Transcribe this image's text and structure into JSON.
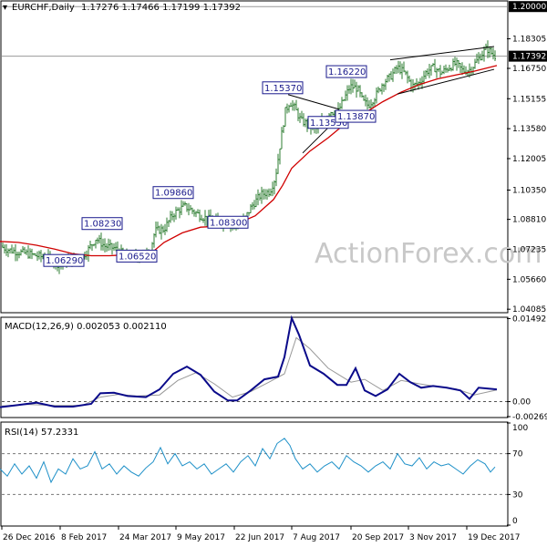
{
  "chart_data": [
    {
      "type": "candlestick",
      "title": "EURCHF,Daily",
      "ohlc_readout": "1.17276 1.17466 1.17199 1.17392",
      "last_price": "1.17392",
      "top_price_label": "1.20000",
      "ylim": [
        1.0395,
        1.2025
      ],
      "y_ticks": [
        "1.18305",
        "1.16750",
        "1.15155",
        "1.13580",
        "1.12005",
        "1.10350",
        "1.08810",
        "1.07235",
        "1.05660",
        "1.04085"
      ],
      "x_ticks": [
        "26 Dec 2016",
        "8 Feb 2017",
        "24 Mar 2017",
        "9 May 2017",
        "22 Jun 2017",
        "7 Aug 2017",
        "20 Sep 2017",
        "3 Nov 2017",
        "19 Dec 2017"
      ],
      "close_path": [
        [
          0,
          1.074
        ],
        [
          10,
          1.072
        ],
        [
          20,
          1.071
        ],
        [
          30,
          1.07
        ],
        [
          40,
          1.069
        ],
        [
          50,
          1.068
        ],
        [
          60,
          1.066
        ],
        [
          65,
          1.064
        ],
        [
          75,
          1.067
        ],
        [
          85,
          1.066
        ],
        [
          95,
          1.071
        ],
        [
          105,
          1.078
        ],
        [
          115,
          1.074
        ],
        [
          125,
          1.073
        ],
        [
          135,
          1.07
        ],
        [
          145,
          1.068
        ],
        [
          155,
          1.069
        ],
        [
          165,
          1.072
        ],
        [
          170,
          1.082
        ],
        [
          180,
          1.083
        ],
        [
          190,
          1.091
        ],
        [
          196,
          1.093
        ],
        [
          202,
          1.095
        ],
        [
          210,
          1.093
        ],
        [
          220,
          1.09
        ],
        [
          230,
          1.088
        ],
        [
          240,
          1.087
        ],
        [
          250,
          1.086
        ],
        [
          260,
          1.085
        ],
        [
          268,
          1.088
        ],
        [
          276,
          1.095
        ],
        [
          286,
          1.101
        ],
        [
          296,
          1.103
        ],
        [
          302,
          1.11
        ],
        [
          308,
          1.13
        ],
        [
          313,
          1.145
        ],
        [
          318,
          1.15
        ],
        [
          324,
          1.146
        ],
        [
          330,
          1.14
        ],
        [
          338,
          1.138
        ],
        [
          346,
          1.135
        ],
        [
          354,
          1.14
        ],
        [
          362,
          1.145
        ],
        [
          370,
          1.144
        ],
        [
          376,
          1.15
        ],
        [
          384,
          1.158
        ],
        [
          392,
          1.157
        ],
        [
          398,
          1.15
        ],
        [
          404,
          1.148
        ],
        [
          412,
          1.153
        ],
        [
          420,
          1.16
        ],
        [
          428,
          1.163
        ],
        [
          436,
          1.168
        ],
        [
          444,
          1.165
        ],
        [
          452,
          1.158
        ],
        [
          460,
          1.16
        ],
        [
          468,
          1.166
        ],
        [
          476,
          1.168
        ],
        [
          484,
          1.165
        ],
        [
          492,
          1.168
        ],
        [
          500,
          1.17
        ],
        [
          508,
          1.166
        ],
        [
          516,
          1.167
        ],
        [
          524,
          1.172
        ],
        [
          530,
          1.176
        ],
        [
          534,
          1.178
        ],
        [
          540,
          1.175
        ],
        [
          543,
          1.174
        ]
      ],
      "moving_average_path": [
        [
          0,
          1.0765
        ],
        [
          20,
          1.076
        ],
        [
          40,
          1.0745
        ],
        [
          60,
          1.0725
        ],
        [
          80,
          1.07
        ],
        [
          100,
          1.069
        ],
        [
          120,
          1.069
        ],
        [
          140,
          1.0695
        ],
        [
          160,
          1.0705
        ],
        [
          170,
          1.072
        ],
        [
          180,
          1.076
        ],
        [
          200,
          1.081
        ],
        [
          220,
          1.084
        ],
        [
          240,
          1.0845
        ],
        [
          260,
          1.0858
        ],
        [
          280,
          1.09
        ],
        [
          300,
          1.0985
        ],
        [
          310,
          1.106
        ],
        [
          320,
          1.115
        ],
        [
          340,
          1.124
        ],
        [
          360,
          1.131
        ],
        [
          380,
          1.139
        ],
        [
          400,
          1.144
        ],
        [
          420,
          1.15
        ],
        [
          440,
          1.155
        ],
        [
          460,
          1.159
        ],
        [
          480,
          1.162
        ],
        [
          500,
          1.164
        ],
        [
          520,
          1.166
        ],
        [
          545,
          1.169
        ]
      ],
      "price_labels": [
        {
          "text": "1.08230",
          "x": 92,
          "y": 1.0823
        },
        {
          "text": "1.06290",
          "x": 50,
          "y": 1.0629
        },
        {
          "text": "1.06520",
          "x": 130,
          "y": 1.0652
        },
        {
          "text": "1.09860",
          "x": 170,
          "y": 1.0986
        },
        {
          "text": "1.08300",
          "x": 230,
          "y": 1.083
        },
        {
          "text": "1.15370",
          "x": 290,
          "y": 1.1537
        },
        {
          "text": "1.13550",
          "x": 340,
          "y": 1.1355
        },
        {
          "text": "1.13870",
          "x": 370,
          "y": 1.1387
        },
        {
          "text": "1.16220",
          "x": 360,
          "y": 1.1622
        }
      ],
      "trendlines": [
        [
          [
            316,
            1.1537
          ],
          [
            372,
            1.146
          ]
        ],
        [
          [
            332,
            1.123
          ],
          [
            372,
            1.142
          ]
        ],
        [
          [
            428,
            1.172
          ],
          [
            542,
            1.179
          ]
        ],
        [
          [
            436,
            1.154
          ],
          [
            542,
            1.167
          ]
        ]
      ],
      "watermark": "ActionForex.com"
    },
    {
      "type": "line",
      "title": "MACD(12,26,9) 0.002053 0.002110",
      "ylim": [
        -0.0027,
        0.015
      ],
      "y_ticks": [
        "0.014927",
        "0.00",
        "-0.002696"
      ],
      "macd_path": [
        [
          0,
          -0.001
        ],
        [
          20,
          -0.0006
        ],
        [
          40,
          -0.0002
        ],
        [
          60,
          -0.0009
        ],
        [
          80,
          -0.0009
        ],
        [
          100,
          -0.0004
        ],
        [
          110,
          0.0015
        ],
        [
          125,
          0.0016
        ],
        [
          140,
          0.001
        ],
        [
          160,
          0.0008
        ],
        [
          175,
          0.0022
        ],
        [
          190,
          0.005
        ],
        [
          205,
          0.0063
        ],
        [
          220,
          0.0048
        ],
        [
          235,
          0.0018
        ],
        [
          250,
          0.0002
        ],
        [
          260,
          0.0002
        ],
        [
          275,
          0.002
        ],
        [
          290,
          0.004
        ],
        [
          305,
          0.0045
        ],
        [
          312,
          0.008
        ],
        [
          320,
          0.015
        ],
        [
          328,
          0.012
        ],
        [
          340,
          0.0065
        ],
        [
          355,
          0.005
        ],
        [
          370,
          0.003
        ],
        [
          380,
          0.003
        ],
        [
          390,
          0.006
        ],
        [
          400,
          0.002
        ],
        [
          412,
          0.001
        ],
        [
          425,
          0.0022
        ],
        [
          438,
          0.005
        ],
        [
          450,
          0.0035
        ],
        [
          462,
          0.0025
        ],
        [
          475,
          0.0028
        ],
        [
          490,
          0.0025
        ],
        [
          505,
          0.002
        ],
        [
          515,
          0.0005
        ],
        [
          525,
          0.0025
        ],
        [
          545,
          0.0022
        ]
      ],
      "signal_path": [
        [
          0,
          -0.0008
        ],
        [
          30,
          -0.0005
        ],
        [
          60,
          -0.0007
        ],
        [
          90,
          -0.0007
        ],
        [
          110,
          0.0008
        ],
        [
          130,
          0.0013
        ],
        [
          150,
          0.001
        ],
        [
          175,
          0.0012
        ],
        [
          195,
          0.0038
        ],
        [
          215,
          0.0052
        ],
        [
          235,
          0.0032
        ],
        [
          255,
          0.0008
        ],
        [
          275,
          0.0018
        ],
        [
          295,
          0.0035
        ],
        [
          312,
          0.005
        ],
        [
          325,
          0.0115
        ],
        [
          340,
          0.0095
        ],
        [
          360,
          0.006
        ],
        [
          385,
          0.0035
        ],
        [
          400,
          0.004
        ],
        [
          420,
          0.002
        ],
        [
          440,
          0.0038
        ],
        [
          460,
          0.0032
        ],
        [
          480,
          0.0027
        ],
        [
          500,
          0.0023
        ],
        [
          520,
          0.0012
        ],
        [
          545,
          0.0021
        ]
      ],
      "zero_line": 0
    },
    {
      "type": "line",
      "title": "RSI(14) 57.2331",
      "ylim": [
        0,
        100
      ],
      "y_ticks": [
        "100",
        "70",
        "30",
        "0"
      ],
      "levels": [
        70,
        30
      ],
      "rsi_path": [
        [
          0,
          55
        ],
        [
          8,
          48
        ],
        [
          16,
          60
        ],
        [
          24,
          50
        ],
        [
          32,
          58
        ],
        [
          40,
          46
        ],
        [
          48,
          62
        ],
        [
          56,
          42
        ],
        [
          64,
          55
        ],
        [
          72,
          50
        ],
        [
          80,
          65
        ],
        [
          88,
          55
        ],
        [
          96,
          58
        ],
        [
          104,
          72
        ],
        [
          112,
          55
        ],
        [
          120,
          60
        ],
        [
          128,
          50
        ],
        [
          136,
          58
        ],
        [
          144,
          52
        ],
        [
          152,
          48
        ],
        [
          160,
          56
        ],
        [
          168,
          62
        ],
        [
          176,
          76
        ],
        [
          184,
          60
        ],
        [
          192,
          70
        ],
        [
          200,
          58
        ],
        [
          208,
          62
        ],
        [
          216,
          55
        ],
        [
          224,
          60
        ],
        [
          232,
          50
        ],
        [
          240,
          55
        ],
        [
          248,
          60
        ],
        [
          256,
          52
        ],
        [
          264,
          62
        ],
        [
          272,
          68
        ],
        [
          280,
          58
        ],
        [
          288,
          75
        ],
        [
          296,
          65
        ],
        [
          304,
          80
        ],
        [
          312,
          85
        ],
        [
          318,
          78
        ],
        [
          324,
          65
        ],
        [
          332,
          55
        ],
        [
          340,
          60
        ],
        [
          348,
          52
        ],
        [
          356,
          58
        ],
        [
          364,
          62
        ],
        [
          372,
          55
        ],
        [
          380,
          68
        ],
        [
          388,
          62
        ],
        [
          396,
          58
        ],
        [
          404,
          52
        ],
        [
          412,
          58
        ],
        [
          420,
          62
        ],
        [
          428,
          55
        ],
        [
          436,
          70
        ],
        [
          444,
          60
        ],
        [
          452,
          58
        ],
        [
          460,
          66
        ],
        [
          468,
          55
        ],
        [
          476,
          62
        ],
        [
          484,
          58
        ],
        [
          492,
          60
        ],
        [
          500,
          55
        ],
        [
          508,
          50
        ],
        [
          516,
          58
        ],
        [
          524,
          64
        ],
        [
          532,
          60
        ],
        [
          538,
          52
        ],
        [
          543,
          57
        ]
      ]
    }
  ]
}
